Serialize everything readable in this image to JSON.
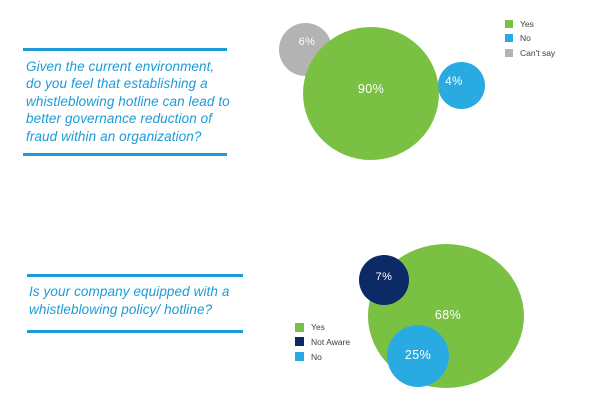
{
  "page": {
    "background": "#FFFFFF"
  },
  "colors": {
    "question_text_blue": "#1B9BD8",
    "divider_blue": "#1B9BD8",
    "yes_green": "#7AC143",
    "no_blue": "#29ABE2",
    "cant_say_gray": "#B3B3B3",
    "not_aware_navy": "#0C2A66",
    "legend_text": "#3F3F3F",
    "bubble_label_text": "#FFFFFF"
  },
  "chart_data": [
    {
      "type": "bubble",
      "question": "Given the current environment, do you feel that establishing a whistleblowing hotline can lead to better governance reduction of fraud within an organization?",
      "unit": "percent",
      "legend_position": "top-right",
      "bubbles": [
        {
          "label": "Yes",
          "value": 90,
          "display": "90%",
          "color": "#7AC143"
        },
        {
          "label": "No",
          "value": 4,
          "display": "4%",
          "color": "#29ABE2"
        },
        {
          "label": "Can't say",
          "value": 6,
          "display": "6%",
          "color": "#B3B3B3"
        }
      ]
    },
    {
      "type": "bubble",
      "question": "Is your company equipped with a whistleblowing policy/ hotline?",
      "unit": "percent",
      "legend_position": "middle-left",
      "bubbles": [
        {
          "label": "Yes",
          "value": 68,
          "display": "68%",
          "color": "#7AC143"
        },
        {
          "label": "Not Aware",
          "value": 7,
          "display": "7%",
          "color": "#0C2A66"
        },
        {
          "label": "No",
          "value": 25,
          "display": "25%",
          "color": "#29ABE2"
        }
      ]
    }
  ]
}
